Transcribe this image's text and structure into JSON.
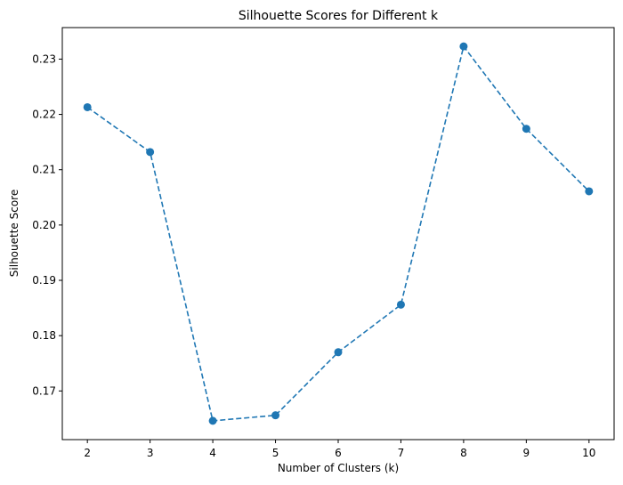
{
  "chart_data": {
    "type": "line",
    "title": "Silhouette Scores for Different k",
    "xlabel": "Number of Clusters (k)",
    "ylabel": "Silhouette Score",
    "x": [
      2,
      3,
      4,
      5,
      6,
      7,
      8,
      9,
      10
    ],
    "series": [
      {
        "values": [
          0.2213,
          0.2132,
          0.1646,
          0.1656,
          0.177,
          0.1856,
          0.2323,
          0.2174,
          0.2061
        ],
        "color": "#1f77b4",
        "line_style": "dashed",
        "marker": "circle"
      }
    ],
    "xticks": [
      "2",
      "3",
      "4",
      "5",
      "6",
      "7",
      "8",
      "9",
      "10"
    ],
    "yticks": [
      "0.17",
      "0.18",
      "0.19",
      "0.20",
      "0.21",
      "0.22",
      "0.23"
    ],
    "ytick_values": [
      0.17,
      0.18,
      0.19,
      0.2,
      0.21,
      0.22,
      0.23
    ],
    "xlim": [
      1.6,
      10.4
    ],
    "ylim": [
      0.1612,
      0.2357
    ],
    "grid": false,
    "legend": false
  }
}
